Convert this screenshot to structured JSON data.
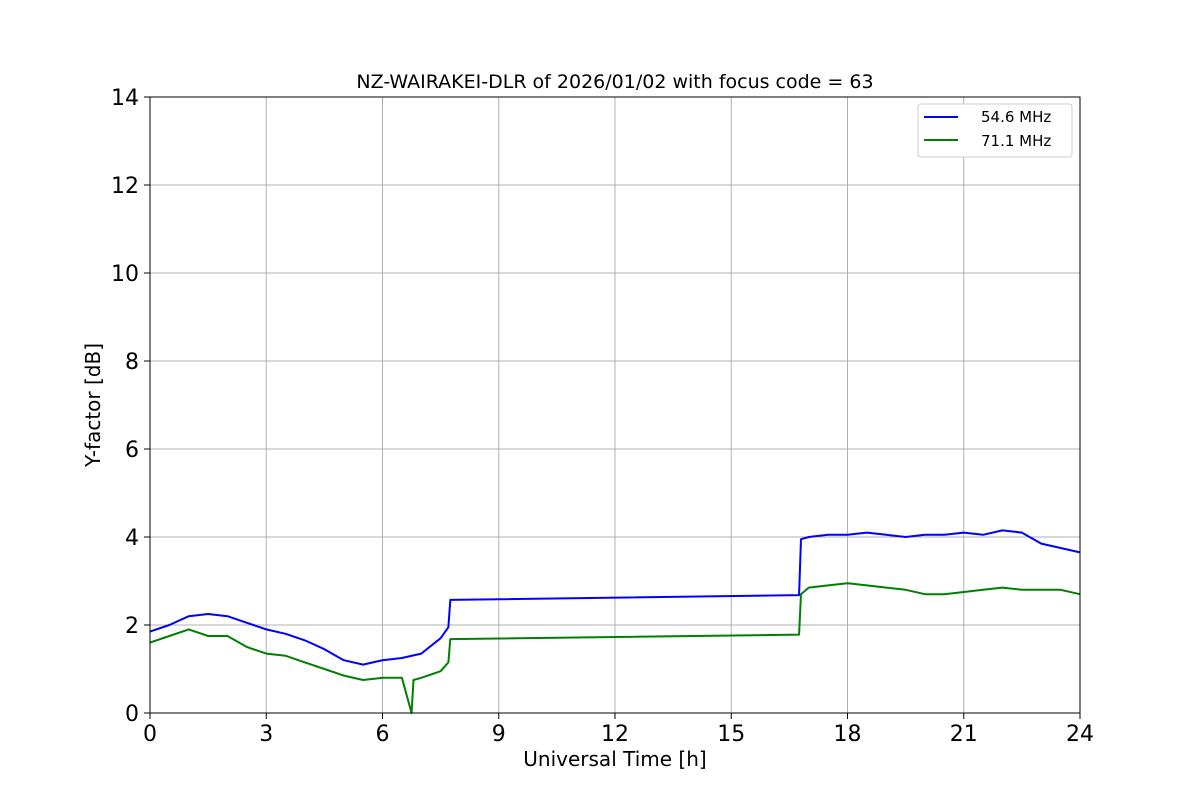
{
  "chart_data": {
    "type": "line",
    "title": "NZ-WAIRAKEI-DLR of 2026/01/02 with focus code = 63",
    "xlabel": "Universal Time [h]",
    "ylabel": "Y-factor [dB]",
    "xlim": [
      0,
      24
    ],
    "ylim": [
      0,
      14
    ],
    "xticks": [
      0,
      3,
      6,
      9,
      12,
      15,
      18,
      21,
      24
    ],
    "yticks": [
      0,
      2,
      4,
      6,
      8,
      10,
      12,
      14
    ],
    "xtick_labels": [
      "0",
      "3",
      "6",
      "9",
      "12",
      "15",
      "18",
      "21",
      "24"
    ],
    "ytick_labels": [
      "0",
      "2",
      "4",
      "6",
      "8",
      "10",
      "12",
      "14"
    ],
    "grid": true,
    "legend_position": "top-right",
    "series": [
      {
        "name": "54.6 MHz",
        "color": "#0000ff",
        "x": [
          0,
          0.5,
          1.0,
          1.5,
          2.0,
          2.5,
          3.0,
          3.5,
          4.0,
          4.5,
          5.0,
          5.5,
          6.0,
          6.5,
          7.0,
          7.5,
          7.7,
          7.75,
          16.75,
          16.8,
          17.0,
          17.5,
          18.0,
          18.5,
          19.0,
          19.5,
          20.0,
          20.5,
          21.0,
          21.5,
          22.0,
          22.5,
          23.0,
          23.5,
          24.0
        ],
        "values": [
          1.85,
          2.0,
          2.2,
          2.25,
          2.2,
          2.05,
          1.9,
          1.8,
          1.65,
          1.45,
          1.2,
          1.1,
          1.2,
          1.25,
          1.35,
          1.7,
          1.95,
          2.57,
          2.68,
          3.95,
          4.0,
          4.05,
          4.05,
          4.1,
          4.05,
          4.0,
          4.05,
          4.05,
          4.1,
          4.05,
          4.15,
          4.1,
          3.85,
          3.75,
          3.65
        ]
      },
      {
        "name": "71.1 MHz",
        "color": "#008000",
        "x": [
          0,
          0.5,
          1.0,
          1.5,
          2.0,
          2.5,
          3.0,
          3.5,
          4.0,
          4.5,
          5.0,
          5.5,
          6.0,
          6.5,
          6.75,
          6.8,
          7.0,
          7.5,
          7.7,
          7.75,
          16.75,
          16.8,
          17.0,
          17.5,
          18.0,
          18.5,
          19.0,
          19.5,
          20.0,
          20.5,
          21.0,
          21.5,
          22.0,
          22.5,
          23.0,
          23.5,
          24.0
        ],
        "values": [
          1.6,
          1.75,
          1.9,
          1.75,
          1.75,
          1.5,
          1.35,
          1.3,
          1.15,
          1.0,
          0.85,
          0.75,
          0.8,
          0.8,
          0.0,
          0.75,
          0.8,
          0.95,
          1.15,
          1.68,
          1.78,
          2.7,
          2.85,
          2.9,
          2.95,
          2.9,
          2.85,
          2.8,
          2.7,
          2.7,
          2.75,
          2.8,
          2.85,
          2.8,
          2.8,
          2.8,
          2.7
        ]
      }
    ]
  }
}
